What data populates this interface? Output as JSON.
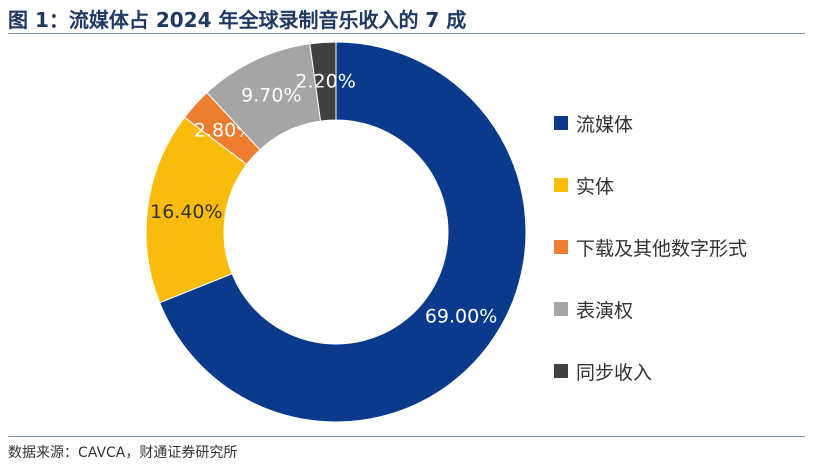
{
  "title": "图 1：流媒体占 2024 年全球录制音乐收入的 7 成",
  "source": "数据来源：CAVCA，财通证券研究所",
  "chart_data": {
    "type": "pie",
    "variant": "donut",
    "title": "图 1：流媒体占 2024 年全球录制音乐收入的 7 成",
    "legend_position": "right",
    "categories": [
      "流媒体",
      "实体",
      "下载及其他数字形式",
      "表演权",
      "同步收入"
    ],
    "values": [
      69.0,
      16.4,
      2.8,
      9.7,
      2.2
    ],
    "labels": [
      "69.00%",
      "16.40%",
      "2.80%",
      "9.70%",
      "2.20%"
    ],
    "colors": [
      "#0b3a8c",
      "#f9bc0c",
      "#ed7d31",
      "#a5a5a5",
      "#404040"
    ]
  }
}
